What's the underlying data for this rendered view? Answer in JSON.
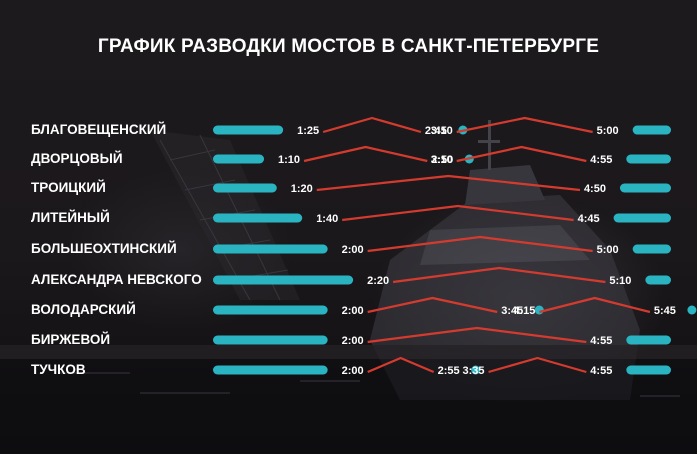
{
  "title": "ГРАФИК РАЗВОДКИ МОСТОВ В САНКТ-ПЕТЕРБУРГЕ",
  "colors": {
    "bar": "#2ab4c2",
    "link": "#d43b2f",
    "text": "#ffffff"
  },
  "bridges": [
    {
      "name": "БЛАГОВЕЩЕНСКИЙ",
      "segments": [
        {
          "open": "1:25",
          "close": "2:45"
        },
        {
          "open": "3:10",
          "close": "5:00"
        }
      ]
    },
    {
      "name": "ДВОРЦОВЫЙ",
      "segments": [
        {
          "open": "1:10",
          "close": "2:50"
        },
        {
          "open": "3:10",
          "close": "4:55"
        }
      ]
    },
    {
      "name": "ТРОИЦКИЙ",
      "segments": [
        {
          "open": "1:20",
          "close": "4:50"
        }
      ]
    },
    {
      "name": "ЛИТЕЙНЫЙ",
      "segments": [
        {
          "open": "1:40",
          "close": "4:45"
        }
      ]
    },
    {
      "name": "БОЛЬШЕОХТИНСКИЙ",
      "segments": [
        {
          "open": "2:00",
          "close": "5:00"
        }
      ]
    },
    {
      "name": "АЛЕКСАНДРА НЕВСКОГО",
      "segments": [
        {
          "open": "2:20",
          "close": "5:10"
        }
      ]
    },
    {
      "name": "ВОЛОДАРСКИЙ",
      "segments": [
        {
          "open": "2:00",
          "close": "3:45"
        },
        {
          "open": "4:15",
          "close": "5:45"
        }
      ]
    },
    {
      "name": "БИРЖЕВОЙ",
      "segments": [
        {
          "open": "2:00",
          "close": "4:55"
        }
      ]
    },
    {
      "name": "ТУЧКОВ",
      "segments": [
        {
          "open": "2:00",
          "close": "2:55"
        },
        {
          "open": "3:35",
          "close": "4:55"
        }
      ]
    }
  ]
}
